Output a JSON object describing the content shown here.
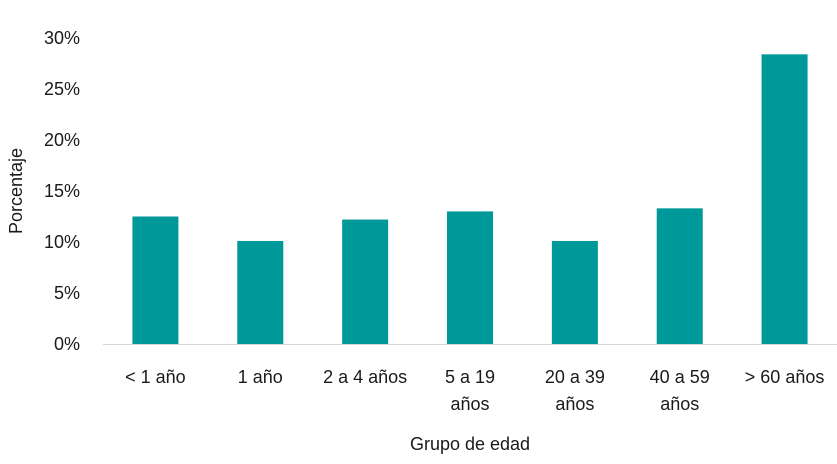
{
  "chart_data": {
    "type": "bar",
    "categories": [
      "< 1 año",
      "1 año",
      "2 a 4 años",
      "5 a 19 años",
      "20 a 39 años",
      "40 a 59 años",
      "> 60 años"
    ],
    "category_lines": [
      [
        "< 1 año"
      ],
      [
        "1 año"
      ],
      [
        "2 a 4 años"
      ],
      [
        "5 a 19",
        "años"
      ],
      [
        "20 a 39",
        "años"
      ],
      [
        "40 a 59",
        "años"
      ],
      [
        "> 60 años"
      ]
    ],
    "values": [
      12.5,
      10.1,
      12.2,
      13.0,
      10.1,
      13.3,
      28.4
    ],
    "xlabel": "Grupo de edad",
    "ylabel": "Porcentaje",
    "ylim": [
      0,
      30
    ],
    "yticks": [
      "0%",
      "5%",
      "10%",
      "15%",
      "20%",
      "25%",
      "30%"
    ],
    "ytick_values": [
      0,
      5,
      10,
      15,
      20,
      25,
      30
    ],
    "grid": false,
    "bar_color": "#009999"
  }
}
